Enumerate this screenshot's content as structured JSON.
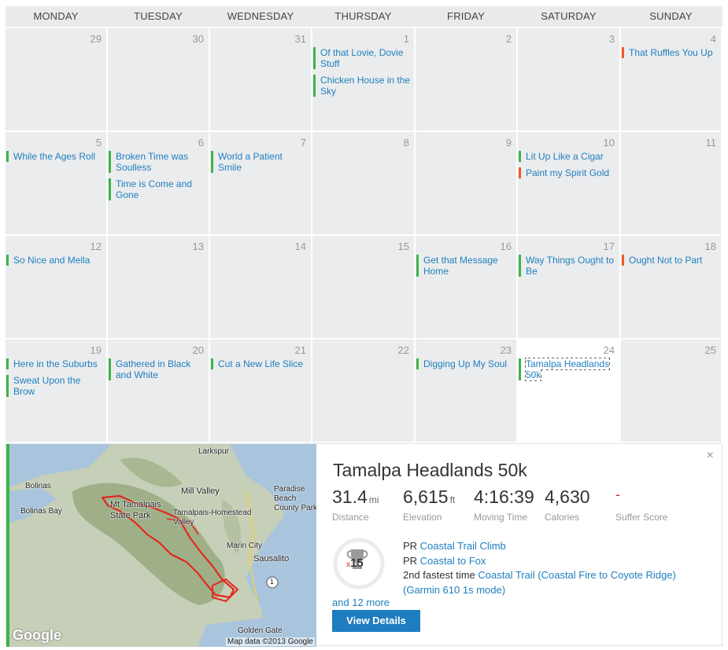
{
  "calendar": {
    "days_of_week": [
      "MONDAY",
      "TUESDAY",
      "WEDNESDAY",
      "THURSDAY",
      "FRIDAY",
      "SATURDAY",
      "SUNDAY"
    ],
    "weeks": [
      [
        {
          "num": "29",
          "events": []
        },
        {
          "num": "30",
          "events": []
        },
        {
          "num": "31",
          "events": []
        },
        {
          "num": "1",
          "events": [
            {
              "title": "Of that Lovie, Dovie Stuff",
              "color": "green"
            },
            {
              "title": "Chicken House in the Sky",
              "color": "green"
            }
          ]
        },
        {
          "num": "2",
          "events": []
        },
        {
          "num": "3",
          "events": []
        },
        {
          "num": "4",
          "events": [
            {
              "title": "That Ruffles You Up",
              "color": "orange"
            }
          ]
        }
      ],
      [
        {
          "num": "5",
          "events": [
            {
              "title": "While the Ages Roll",
              "color": "green"
            }
          ]
        },
        {
          "num": "6",
          "events": [
            {
              "title": "Broken Time was Soulless",
              "color": "green"
            },
            {
              "title": "Time is Come and Gone",
              "color": "green"
            }
          ]
        },
        {
          "num": "7",
          "events": [
            {
              "title": "World a Patient Smile",
              "color": "green"
            }
          ]
        },
        {
          "num": "8",
          "events": []
        },
        {
          "num": "9",
          "events": []
        },
        {
          "num": "10",
          "events": [
            {
              "title": "Lit Up Like a Cigar",
              "color": "green"
            },
            {
              "title": "Paint my Spirit Gold",
              "color": "orange"
            }
          ]
        },
        {
          "num": "11",
          "events": []
        }
      ],
      [
        {
          "num": "12",
          "events": [
            {
              "title": "So Nice and Mella",
              "color": "green"
            }
          ]
        },
        {
          "num": "13",
          "events": []
        },
        {
          "num": "14",
          "events": []
        },
        {
          "num": "15",
          "events": []
        },
        {
          "num": "16",
          "events": [
            {
              "title": "Get that Message Home",
              "color": "green"
            }
          ]
        },
        {
          "num": "17",
          "events": [
            {
              "title": "Way Things Ought to Be",
              "color": "green"
            }
          ]
        },
        {
          "num": "18",
          "events": [
            {
              "title": "Ought Not to Part",
              "color": "orange"
            }
          ]
        }
      ],
      [
        {
          "num": "19",
          "events": [
            {
              "title": "Here in the Suburbs",
              "color": "green"
            },
            {
              "title": "Sweat Upon the Brow",
              "color": "green"
            }
          ]
        },
        {
          "num": "20",
          "events": [
            {
              "title": "Gathered in Black and White",
              "color": "green"
            }
          ]
        },
        {
          "num": "21",
          "events": [
            {
              "title": "Cut a New Life Slice",
              "color": "green"
            }
          ]
        },
        {
          "num": "22",
          "events": []
        },
        {
          "num": "23",
          "events": [
            {
              "title": "Digging Up My Soul",
              "color": "green"
            }
          ]
        },
        {
          "num": "24",
          "today": true,
          "events": [
            {
              "title": "Tamalpa Headlands 50k",
              "color": "green",
              "selected": true
            }
          ]
        },
        {
          "num": "25",
          "events": []
        }
      ]
    ]
  },
  "colors": {
    "green": "#3db54a",
    "orange": "#ec5a24",
    "link": "#1f7fbd",
    "button": "#1e7dbf"
  },
  "map": {
    "labels": [
      "Larkspur",
      "Bolinas",
      "Bolinas Bay",
      "Mill Valley",
      "Mt Tamalpais State Park",
      "Tamalpais-Homestead Valley",
      "Paradise Beach County Park",
      "Marin City",
      "Sausalito",
      "Golden Gate"
    ],
    "highway": "1",
    "logo": "Google",
    "attribution": "Map data ©2013 Google"
  },
  "activity": {
    "title": "Tamalpa Headlands 50k",
    "close_icon": "×",
    "stats": [
      {
        "value": "31.4",
        "unit": "mi",
        "label": "Distance"
      },
      {
        "value": "6,615",
        "unit": "ft",
        "label": "Elevation"
      },
      {
        "value": "4:16:39",
        "unit": "",
        "label": "Moving Time"
      },
      {
        "value": "4,630",
        "unit": "",
        "label": "Calories"
      },
      {
        "value": "-",
        "unit": "",
        "label": "Suffer Score"
      }
    ],
    "trophy_x": "x",
    "trophy_count": "15",
    "achievements": [
      {
        "prefix": "PR ",
        "link": "Coastal Trail Climb"
      },
      {
        "prefix": "PR ",
        "link": "Coastal to Fox"
      },
      {
        "prefix": "2nd fastest time ",
        "link": "Coastal Trail (Coastal Fire to Coyote Ridge) (Garmin 610 1s mode)"
      }
    ],
    "more_link": "and 12 more",
    "button_label": "View Details"
  }
}
